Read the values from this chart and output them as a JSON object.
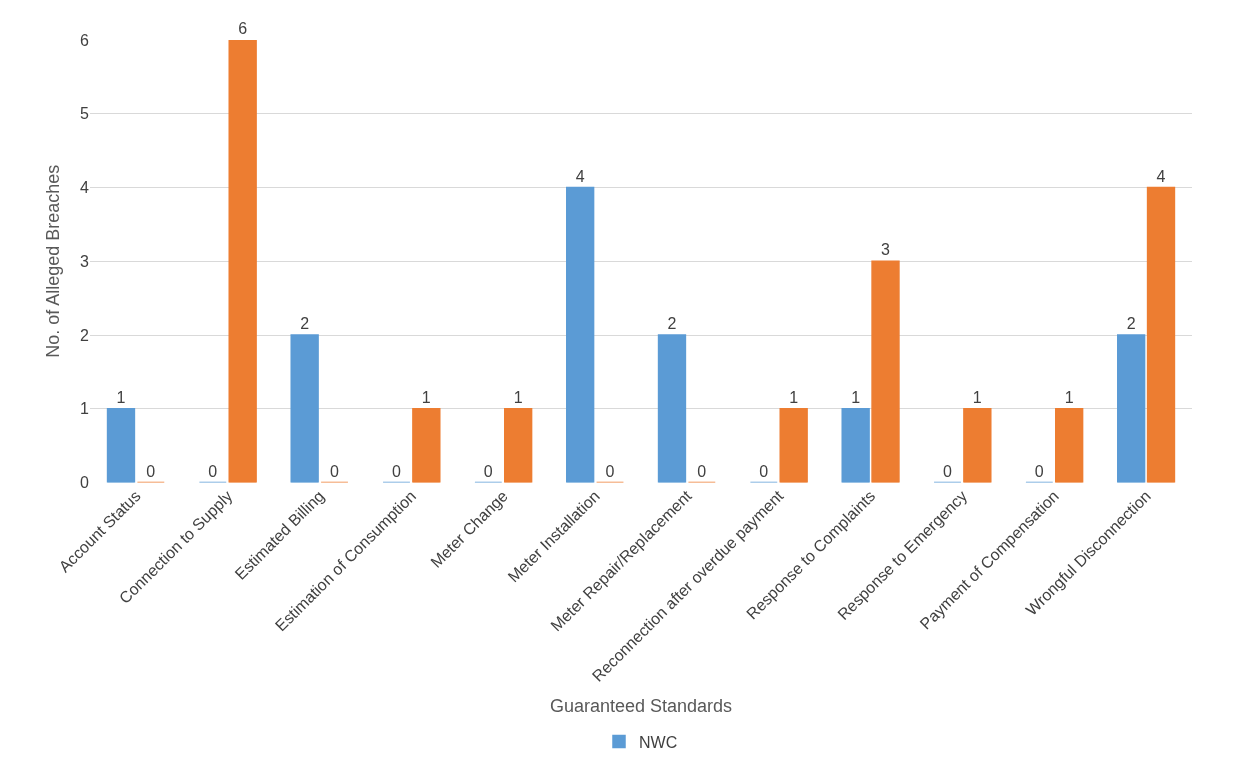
{
  "chart_data": {
    "type": "bar",
    "xlabel": "Guaranteed Standards",
    "ylabel": "No. of Alleged Breaches",
    "categories": [
      "Account Status",
      "Connection to Supply",
      "Estimated Billing",
      "Estimation of Consumption",
      "Meter Change",
      "Meter Installation",
      "Meter Repair/Replacement",
      "Reconnection after overdue payment",
      "Response to Complaints",
      "Response to Emergency",
      "Payment of Compensation",
      "Wrongful Disconnection"
    ],
    "series": [
      {
        "name": "NWC",
        "color": "#5b9bd5",
        "values": [
          1,
          0,
          2,
          0,
          0,
          4,
          2,
          0,
          1,
          0,
          0,
          2
        ]
      },
      {
        "color": "#ed7d31",
        "values": [
          0,
          6,
          0,
          1,
          1,
          0,
          0,
          1,
          3,
          1,
          1,
          4
        ]
      }
    ],
    "ylim": [
      0,
      6
    ],
    "yticks": [
      0,
      1,
      2,
      3,
      4,
      5,
      6
    ],
    "grid": "y",
    "legend": "bottom",
    "data_labels": true
  }
}
